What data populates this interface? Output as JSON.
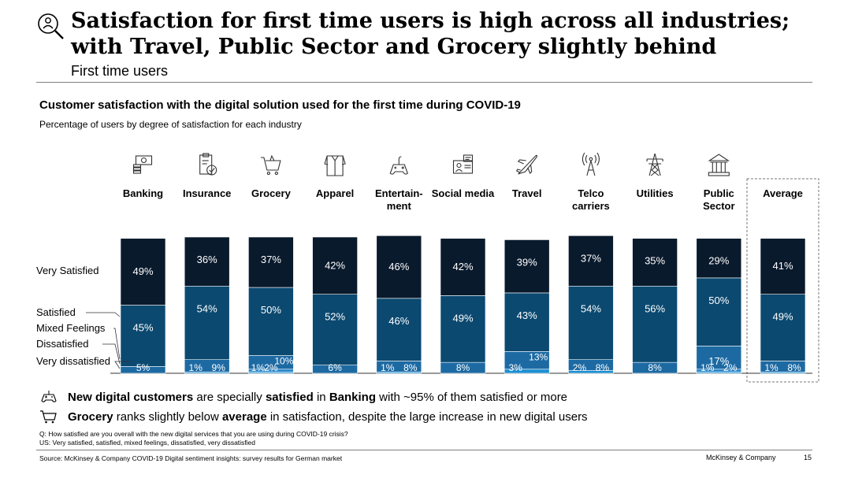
{
  "header": {
    "title": "Satisfaction for first time users is high across all industries; with Travel, Public Sector and Grocery slightly behind",
    "subtitle": "First time users"
  },
  "chart_data": {
    "type": "bar",
    "stacked": true,
    "title": "Customer satisfaction with the digital solution used for the first time during COVID-19",
    "subtitle": "Percentage of users by degree of satisfaction for each industry",
    "categories": [
      "Banking",
      "Insurance",
      "Grocery",
      "Apparel",
      "Entertain-ment",
      "Social media",
      "Travel",
      "Telco carriers",
      "Utilities",
      "Public Sector",
      "Average"
    ],
    "category_icons": [
      "money-icon",
      "clipboard-check-icon",
      "shopping-cart-icon",
      "shirt-icon",
      "gamepad-icon",
      "social-screen-icon",
      "airplane-icon",
      "antenna-icon",
      "power-tower-icon",
      "government-building-icon",
      "none"
    ],
    "series": [
      {
        "name": "Very dissatisfied",
        "color": "#1d8fd3",
        "values": [
          0,
          1,
          1,
          0,
          1,
          0,
          3,
          2,
          0,
          1,
          1
        ]
      },
      {
        "name": "Dissatisfied",
        "color": "#2585c9",
        "values": [
          0,
          0,
          2,
          0,
          0,
          0,
          0,
          0,
          0,
          2,
          0
        ]
      },
      {
        "name": "Mixed Feelings",
        "color": "#1d6aa3",
        "values": [
          5,
          9,
          10,
          6,
          8,
          8,
          13,
          8,
          8,
          17,
          8
        ]
      },
      {
        "name": "Satisfied",
        "color": "#0b4970",
        "values": [
          45,
          54,
          50,
          52,
          46,
          49,
          43,
          54,
          56,
          50,
          49
        ]
      },
      {
        "name": "Very Satisfied",
        "color": "#0a1a2d",
        "values": [
          49,
          36,
          37,
          42,
          46,
          42,
          39,
          37,
          35,
          29,
          41
        ]
      }
    ],
    "legend_labels": [
      "Very Satisfied",
      "Satisfied",
      "Mixed Feelings",
      "Dissatisfied",
      "Very dissatisfied"
    ],
    "data_labels": [
      [
        "5%",
        "45%",
        "49%"
      ],
      [
        "1%",
        "9%",
        "54%",
        "36%"
      ],
      [
        "1%",
        "2%",
        "10%",
        "50%",
        "37%"
      ],
      [
        "6%",
        "52%",
        "42%"
      ],
      [
        "1%",
        "8%",
        "46%",
        "46%"
      ],
      [
        "8%",
        "49%",
        "42%"
      ],
      [
        "3%",
        "13%",
        "43%",
        "39%"
      ],
      [
        "2%",
        "8%",
        "54%",
        "37%"
      ],
      [
        "8%",
        "56%",
        "35%"
      ],
      [
        "1%",
        "2%",
        "17%",
        "50%",
        "29%"
      ],
      [
        "1%",
        "8%",
        "49%",
        "41%"
      ]
    ],
    "highlight": "Average",
    "ylim": [
      0,
      100
    ]
  },
  "insights": [
    {
      "icon": "gamepad-icon",
      "parts": [
        {
          "text": "New digital customers",
          "bold": true
        },
        {
          "text": " are specially ",
          "bold": false
        },
        {
          "text": "satisfied",
          "bold": true
        },
        {
          "text": " in ",
          "bold": false
        },
        {
          "text": "Banking",
          "bold": true
        },
        {
          "text": " with ~95% of them satisfied or more",
          "bold": false
        }
      ]
    },
    {
      "icon": "shopping-cart-icon",
      "parts": [
        {
          "text": "Grocery",
          "bold": true
        },
        {
          "text": " ranks slightly below ",
          "bold": false
        },
        {
          "text": "average",
          "bold": true
        },
        {
          "text": " in satisfaction, despite the large increase in new digital users",
          "bold": false
        }
      ]
    }
  ],
  "notes": {
    "q": "Q: How satisfied are you overall with the new digital services that you are using during COVID-19 crisis?",
    "us": "US: Very satisfied, satisfied, mixed feelings, dissatisfied, very dissatisfied"
  },
  "footer": {
    "source": "Source: McKinsey & Company COVID-19 Digital sentiment insights: survey results for German market",
    "brand": "McKinsey & Company",
    "page": "15"
  }
}
